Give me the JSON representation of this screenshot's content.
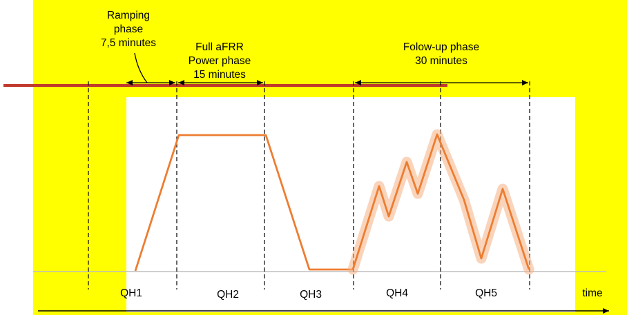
{
  "phases": {
    "ramping": {
      "line1": "Ramping",
      "line2": "phase",
      "line3": "7,5 minutes"
    },
    "full_power": {
      "line1": "Full aFRR",
      "line2": "Power phase",
      "line3": "15 minutes"
    },
    "follow_up": {
      "line1": "Folow-up phase",
      "line2": "30 minutes"
    }
  },
  "quarter_hours": [
    "QH1",
    "QH2",
    "QH3",
    "QH4",
    "QH5"
  ],
  "axis": {
    "x_label": "time"
  },
  "colors": {
    "background": "#ffff00",
    "plot_area": "#ffffff",
    "power_curve": "#ed7d31",
    "power_band": "#f4b183",
    "reference_line": "#c0392b",
    "baseline": "#bfbfbf"
  }
}
